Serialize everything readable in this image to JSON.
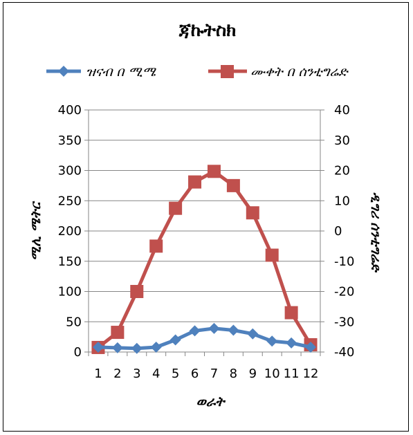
{
  "chart_data": {
    "type": "line",
    "title": "ጃኩትስክ",
    "xlabel": "ወራት",
    "ylabel": "ሚሊ ሜትር",
    "y2label": "ዲግሪ ሰንቲግሬድ",
    "x": [
      1,
      2,
      3,
      4,
      5,
      6,
      7,
      8,
      9,
      10,
      11,
      12
    ],
    "x_tick_labels": [
      "1",
      "2",
      "3",
      "4",
      "5",
      "6",
      "7",
      "8",
      "9",
      "10",
      "11",
      "12"
    ],
    "ylim": [
      0,
      400
    ],
    "y_ticks": [
      0,
      50,
      100,
      150,
      200,
      250,
      300,
      350,
      400
    ],
    "y2lim": [
      -40,
      40
    ],
    "y2_ticks": [
      -40,
      -30,
      -20,
      -10,
      0,
      10,
      20,
      30,
      40
    ],
    "legend_position": "top",
    "grid": "horizontal-major",
    "series": [
      {
        "name": "ዝናብ በ ሚሜ",
        "axis": "left",
        "color": "#4F81BD",
        "marker": "diamond",
        "values": [
          8,
          7,
          6,
          8,
          20,
          35,
          39,
          36,
          30,
          18,
          15,
          8
        ]
      },
      {
        "name": "ሙቀት በ ሰንቲግሬድ",
        "axis": "right",
        "color": "#C0504D",
        "marker": "square",
        "values": [
          -38.5,
          -33.5,
          -20,
          -5,
          7.5,
          16.2,
          19.7,
          15,
          6,
          -8,
          -27,
          -37.6
        ]
      }
    ]
  }
}
